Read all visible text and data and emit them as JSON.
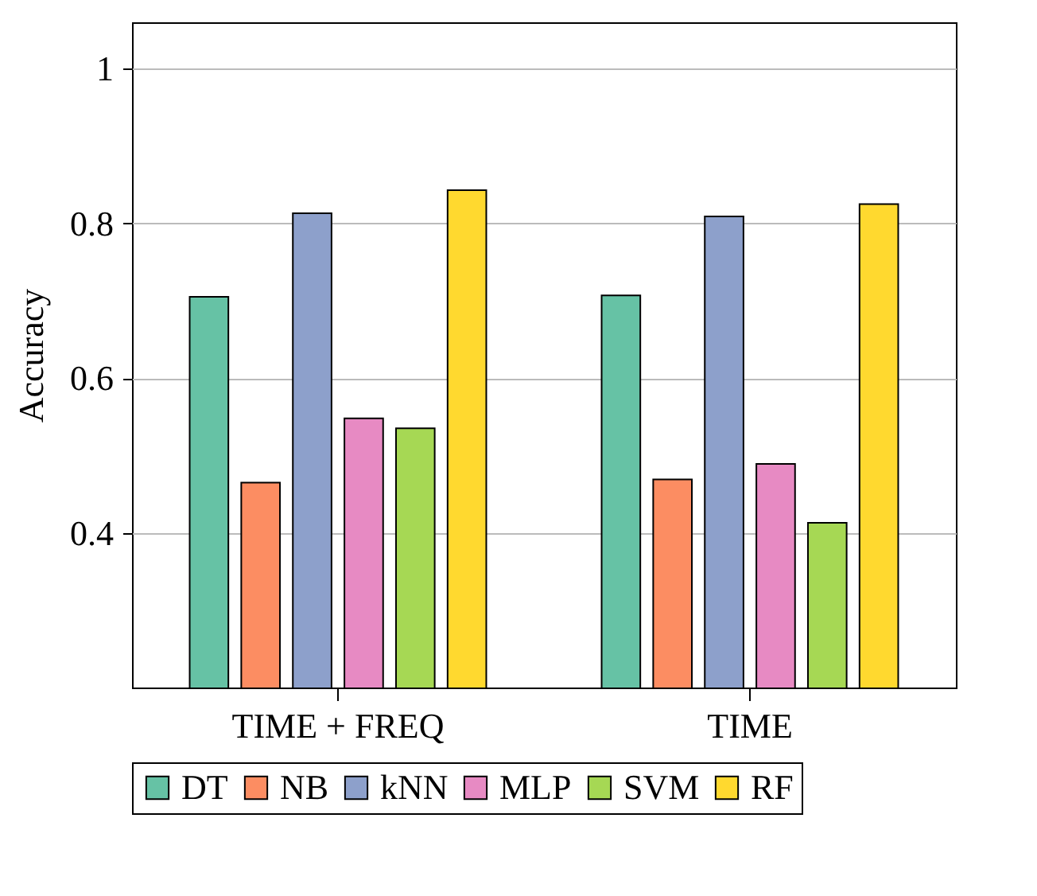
{
  "chart_data": {
    "type": "bar",
    "ylabel": "Accuracy",
    "categories": [
      "TIME + FREQ",
      "TIME"
    ],
    "series": [
      {
        "name": "DT",
        "color": "#66c2a5",
        "values": [
          0.705,
          0.707
        ]
      },
      {
        "name": "NB",
        "color": "#fc8d62",
        "values": [
          0.465,
          0.469
        ]
      },
      {
        "name": "kNN",
        "color": "#8da0cb",
        "values": [
          0.813,
          0.809
        ]
      },
      {
        "name": "MLP",
        "color": "#e78ac3",
        "values": [
          0.548,
          0.489
        ]
      },
      {
        "name": "SVM",
        "color": "#a6d854",
        "values": [
          0.535,
          0.413
        ]
      },
      {
        "name": "RF",
        "color": "#ffd92f",
        "values": [
          0.843,
          0.825
        ]
      }
    ],
    "ylim": [
      0.2,
      1.06
    ],
    "yticks": [
      0.4,
      0.6,
      0.8,
      {
        "value": 1,
        "label": "1"
      }
    ],
    "grid": "y",
    "legend": "bottom"
  }
}
